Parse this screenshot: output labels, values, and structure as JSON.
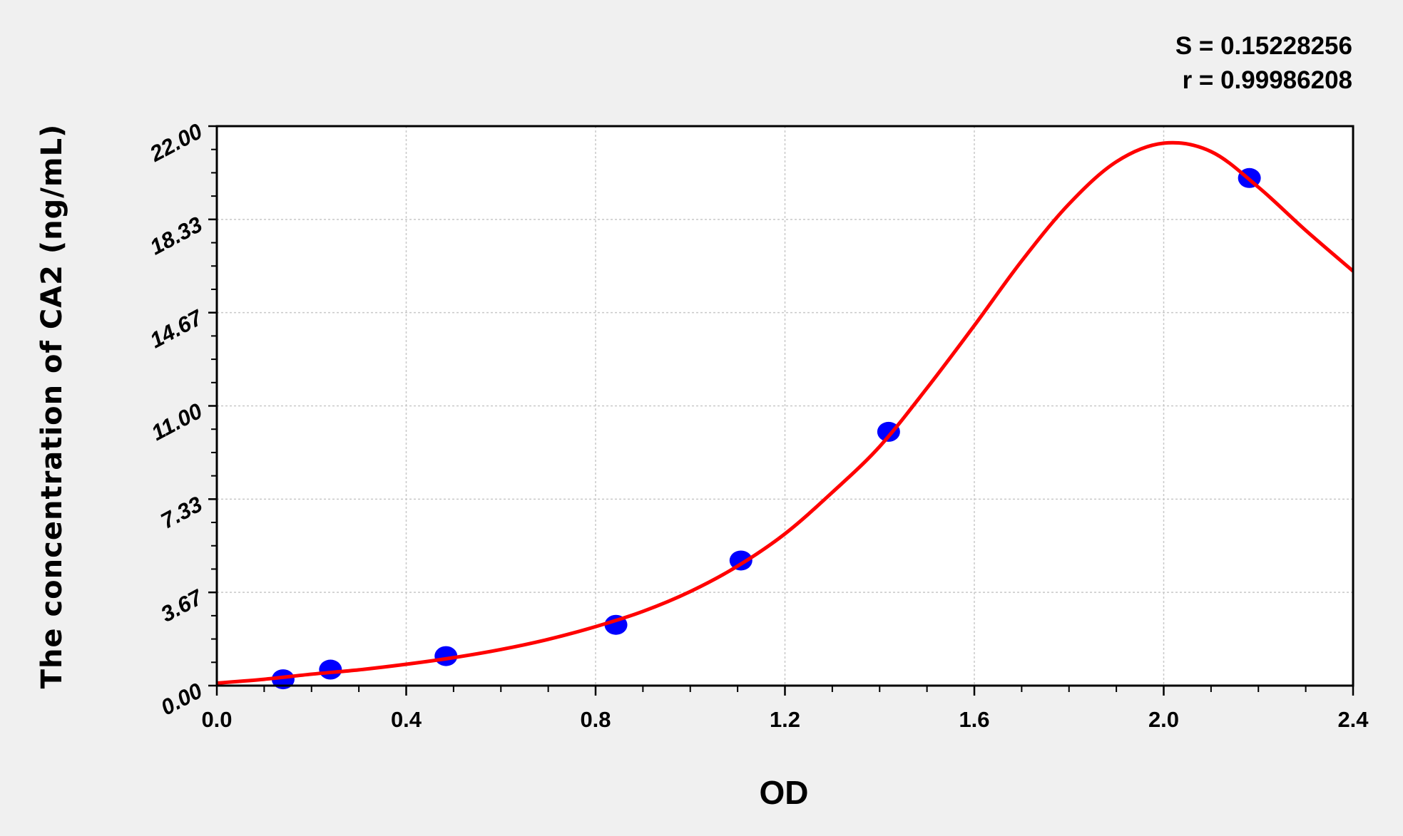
{
  "chart_data": {
    "type": "scatter",
    "title": "",
    "xlabel": "OD",
    "ylabel": "The concentration of CA2 (ng/mL)",
    "xlim": [
      0,
      2.4
    ],
    "ylim": [
      0,
      22
    ],
    "x_ticks": [
      "0.0",
      "0.4",
      "0.8",
      "1.2",
      "1.6",
      "2.0",
      "2.4"
    ],
    "y_ticks": [
      "0.00",
      "3.67",
      "7.33",
      "11.00",
      "14.67",
      "18.33",
      "22.00"
    ],
    "grid": true,
    "annotations": [
      "S = 0.15228256",
      "r = 0.99986208"
    ],
    "colors": {
      "points": "#0000ff",
      "curve": "#ff0000",
      "background": "#f0f0f0",
      "plot_area": "#ffffff"
    },
    "series": [
      {
        "type": "scatter",
        "x": [
          0.14,
          0.24,
          0.484,
          0.843,
          1.107,
          1.419,
          2.181
        ],
        "y": [
          0.25,
          0.63,
          1.16,
          2.39,
          4.92,
          9.98,
          19.96
        ]
      },
      {
        "type": "line",
        "x": [
          0,
          0.1,
          0.2,
          0.3,
          0.4,
          0.5,
          0.6,
          0.7,
          0.8,
          0.9,
          1.0,
          1.1,
          1.2,
          1.3,
          1.4,
          1.5,
          1.6,
          1.7,
          1.8,
          1.9,
          2.0,
          2.1,
          2.2,
          2.3,
          2.4
        ],
        "y": [
          0.1,
          0.25,
          0.45,
          0.62,
          0.84,
          1.1,
          1.42,
          1.82,
          2.32,
          2.92,
          3.7,
          4.7,
          5.97,
          7.6,
          9.4,
          11.7,
          14.16,
          16.7,
          18.94,
          20.6,
          21.33,
          21.0,
          19.6,
          17.9,
          16.3
        ]
      }
    ]
  }
}
